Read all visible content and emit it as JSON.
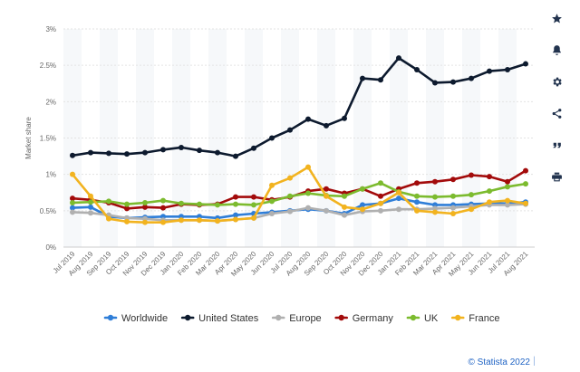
{
  "chart_data": {
    "type": "line",
    "ylabel": "Market share",
    "ylim": [
      0,
      3
    ],
    "yticks": [
      "0%",
      "0.5%",
      "1%",
      "1.5%",
      "2%",
      "2.5%",
      "3%"
    ],
    "categories": [
      "Jul 2019",
      "Aug 2019",
      "Sep 2019",
      "Oct 2019",
      "Nov 2019",
      "Dec 2019",
      "Jan 2020",
      "Feb 2020",
      "Mar 2020",
      "Apr 2020",
      "May 2020",
      "Jun 2020",
      "Jul 2020",
      "Aug 2020",
      "Sep 2020",
      "Oct 2020",
      "Nov 2020",
      "Dec 2020",
      "Jan 2021",
      "Feb 2021",
      "Mar 2021",
      "Apr 2021",
      "May 2021",
      "Jun 2021",
      "Jul 2021",
      "Aug 2021"
    ],
    "series": [
      {
        "name": "Worldwide",
        "color": "#2f7ed8",
        "values": [
          0.54,
          0.55,
          0.42,
          0.4,
          0.41,
          0.42,
          0.42,
          0.42,
          0.4,
          0.44,
          0.46,
          0.48,
          0.5,
          0.52,
          0.5,
          0.46,
          0.58,
          0.6,
          0.67,
          0.62,
          0.58,
          0.58,
          0.59,
          0.6,
          0.6,
          0.62
        ]
      },
      {
        "name": "United States",
        "color": "#0d1a2e",
        "values": [
          1.26,
          1.3,
          1.29,
          1.28,
          1.3,
          1.34,
          1.37,
          1.33,
          1.3,
          1.25,
          1.36,
          1.5,
          1.61,
          1.76,
          1.67,
          1.77,
          2.32,
          2.3,
          2.6,
          2.44,
          2.26,
          2.27,
          2.32,
          2.42,
          2.44,
          2.52
        ]
      },
      {
        "name": "Europe",
        "color": "#b0b0b0",
        "values": [
          0.48,
          0.47,
          0.44,
          0.4,
          0.39,
          0.37,
          0.37,
          0.37,
          0.36,
          0.38,
          0.4,
          0.46,
          0.49,
          0.54,
          0.5,
          0.44,
          0.49,
          0.5,
          0.52,
          0.52,
          0.53,
          0.54,
          0.56,
          0.58,
          0.58,
          0.59
        ]
      },
      {
        "name": "Germany",
        "color": "#a30b0b",
        "values": [
          0.67,
          0.65,
          0.61,
          0.53,
          0.55,
          0.54,
          0.59,
          0.58,
          0.59,
          0.69,
          0.69,
          0.65,
          0.69,
          0.77,
          0.8,
          0.74,
          0.8,
          0.7,
          0.8,
          0.88,
          0.9,
          0.93,
          0.99,
          0.97,
          0.9,
          1.05
        ]
      },
      {
        "name": "UK",
        "color": "#7cbb2e",
        "values": [
          0.61,
          0.62,
          0.63,
          0.59,
          0.61,
          0.64,
          0.6,
          0.59,
          0.58,
          0.59,
          0.58,
          0.63,
          0.7,
          0.74,
          0.71,
          0.7,
          0.8,
          0.88,
          0.76,
          0.7,
          0.69,
          0.7,
          0.72,
          0.77,
          0.83,
          0.87
        ]
      },
      {
        "name": "France",
        "color": "#f2b31f",
        "values": [
          1.0,
          0.7,
          0.39,
          0.35,
          0.34,
          0.34,
          0.37,
          0.37,
          0.36,
          0.38,
          0.4,
          0.85,
          0.95,
          1.1,
          0.7,
          0.55,
          0.52,
          0.6,
          0.75,
          0.5,
          0.48,
          0.46,
          0.52,
          0.62,
          0.64,
          0.6
        ]
      }
    ],
    "grid": true,
    "legend_position": "bottom"
  },
  "credit": "© Statista 2022",
  "sidebar": {
    "icons": [
      "star-icon",
      "bell-icon",
      "gear-icon",
      "share-icon",
      "quote-icon",
      "print-icon"
    ]
  }
}
